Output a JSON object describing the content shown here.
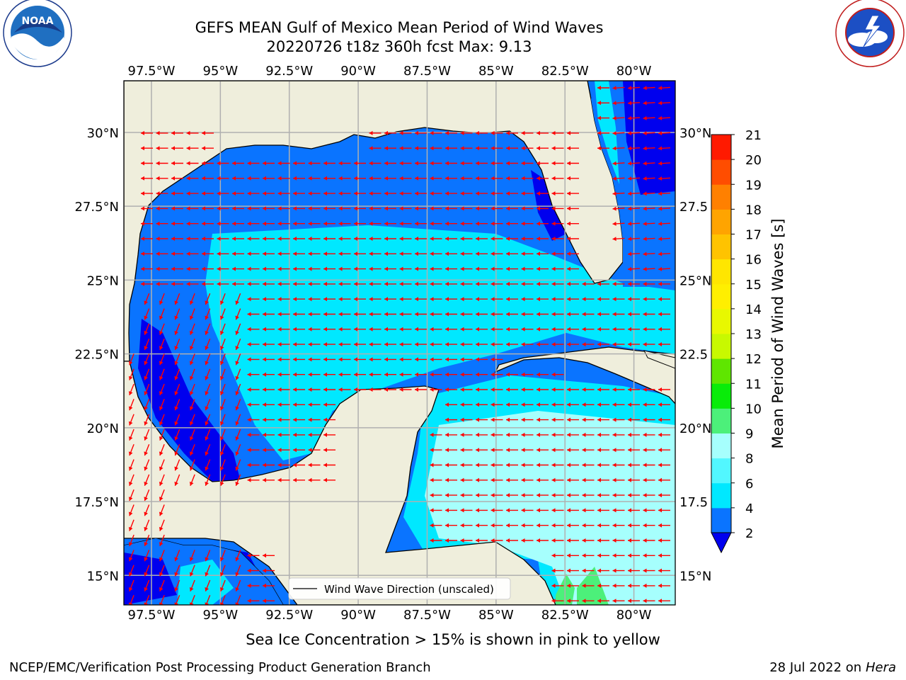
{
  "title": {
    "line1": "GEFS MEAN Gulf of Mexico Mean Period of Wind Waves",
    "line2": "20220726 t18z 360h fcst   Max: 9.13"
  },
  "logos": {
    "left": {
      "icon": "noaa-logo",
      "text": "NOAA",
      "ring_text": "NATIONAL OCEANIC AND ATMOSPHERIC ADMINISTRATION · U.S. DEPARTMENT OF COMMERCE"
    },
    "right": {
      "icon": "nws-logo",
      "ring_text": "NATIONAL WEATHER SERVICE"
    }
  },
  "map": {
    "projection": "PlateCarree",
    "lon_range": [
      -98.5,
      -78.5
    ],
    "lat_range": [
      14,
      31.75
    ],
    "lon_ticks": [
      "97.5°W",
      "95°W",
      "92.5°W",
      "90°W",
      "87.5°W",
      "85°W",
      "82.5°W",
      "80°W"
    ],
    "lat_ticks_left": [
      "30°N",
      "27.5°N",
      "25°N",
      "22.5°N",
      "20°N",
      "17.5°N",
      "15°N"
    ],
    "lat_ticks_right": [
      "30°N",
      "27.5",
      "25°N",
      "22.5",
      "20°N",
      "17.5",
      "15°N"
    ],
    "grid": true,
    "land_color": "#efeedc",
    "vector_color": "#ff0000",
    "legend": {
      "label": "Wind Wave Direction (unscaled)",
      "placement": "lower right"
    }
  },
  "colorbar": {
    "label": "Mean Period of Wind Waves [s]",
    "ticks": [
      "2",
      "4",
      "6",
      "8",
      "9",
      "10",
      "11",
      "12",
      "13",
      "14",
      "15",
      "16",
      "17",
      "18",
      "19",
      "20",
      "21"
    ],
    "colors": [
      "#0a74ff",
      "#00e8ff",
      "#52f7ff",
      "#a6fffd",
      "#4cf07a",
      "#09ec09",
      "#5fe600",
      "#c8f900",
      "#e8f800",
      "#ffef00",
      "#ffe600",
      "#ffc300",
      "#ffa400",
      "#ff8000",
      "#ff4d00",
      "#ff1a00"
    ],
    "under_color": "#0000ee"
  },
  "sea_ice_note": "Sea Ice Concentration > 15% is shown in pink to yellow",
  "footer": {
    "left": "NCEP/EMC/Verification Post Processing Product Generation Branch",
    "right_date": "28 Jul 2022 on ",
    "right_host": "Hera"
  }
}
